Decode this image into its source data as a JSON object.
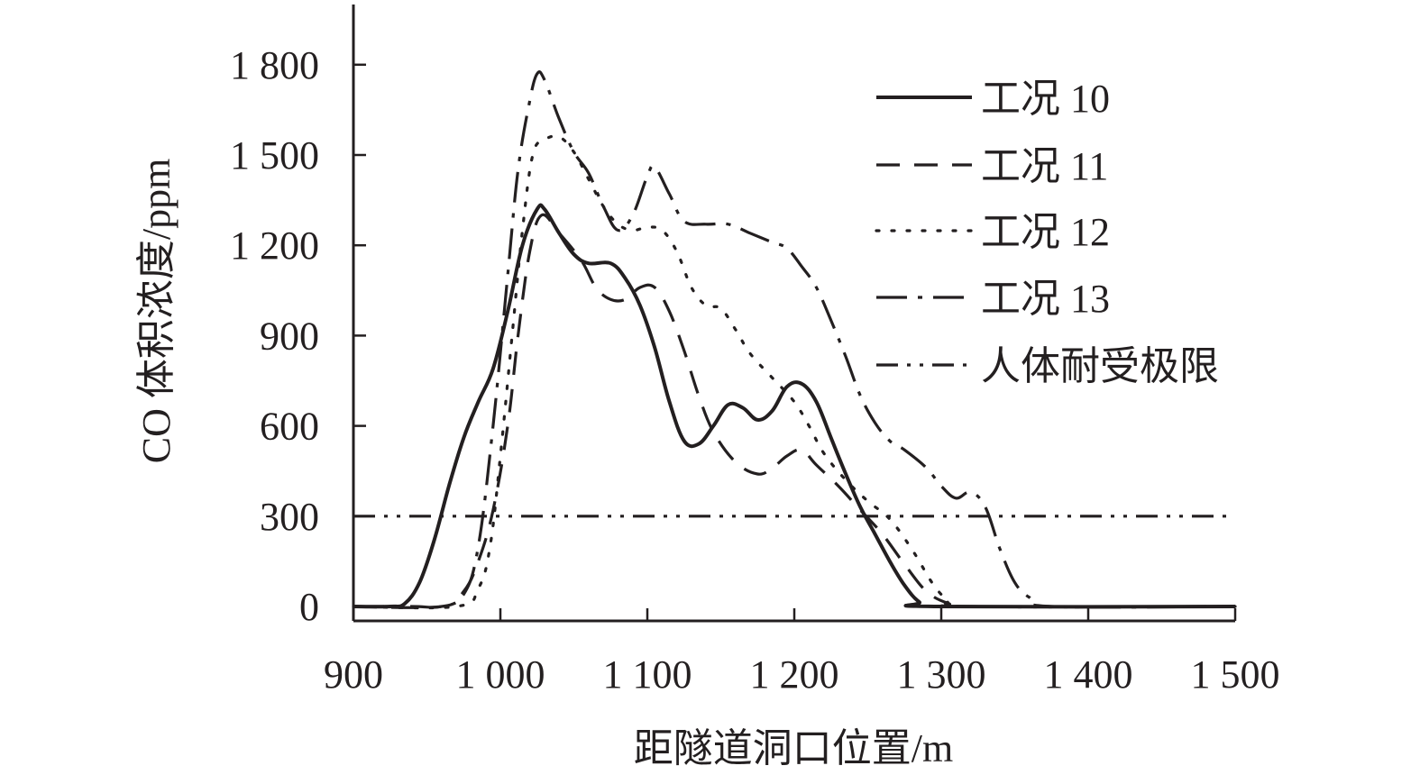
{
  "chart_data": {
    "type": "line",
    "xlabel": "距隧道洞口位置/m",
    "ylabel": "CO 体积浓度/ppm",
    "xlim": [
      900,
      1500
    ],
    "ylim": [
      0,
      2000
    ],
    "x_ticks": [
      900,
      1000,
      1100,
      1200,
      1300,
      1400,
      1500
    ],
    "x_tick_labels": [
      "900",
      "1 000",
      "1 100",
      "1 200",
      "1 300",
      "1 400",
      "1 500"
    ],
    "y_ticks": [
      0,
      300,
      600,
      900,
      1200,
      1500,
      1800
    ],
    "y_tick_labels": [
      "0",
      "300",
      "600",
      "900",
      "1 200",
      "1 500",
      "1 800"
    ],
    "grid": false,
    "legend_position": "top-right",
    "colors": {
      "line": "#231f20"
    },
    "series": [
      {
        "name": "工况 10",
        "style": "solid",
        "points": [
          [
            900,
            0
          ],
          [
            925,
            0
          ],
          [
            935,
            10
          ],
          [
            945,
            80
          ],
          [
            955,
            220
          ],
          [
            965,
            400
          ],
          [
            975,
            560
          ],
          [
            985,
            680
          ],
          [
            995,
            790
          ],
          [
            1005,
            980
          ],
          [
            1015,
            1200
          ],
          [
            1025,
            1320
          ],
          [
            1030,
            1320
          ],
          [
            1040,
            1240
          ],
          [
            1050,
            1170
          ],
          [
            1060,
            1140
          ],
          [
            1075,
            1140
          ],
          [
            1085,
            1090
          ],
          [
            1095,
            1000
          ],
          [
            1105,
            860
          ],
          [
            1115,
            680
          ],
          [
            1125,
            550
          ],
          [
            1135,
            540
          ],
          [
            1145,
            600
          ],
          [
            1155,
            670
          ],
          [
            1165,
            660
          ],
          [
            1175,
            620
          ],
          [
            1185,
            650
          ],
          [
            1195,
            730
          ],
          [
            1205,
            740
          ],
          [
            1215,
            680
          ],
          [
            1225,
            560
          ],
          [
            1235,
            440
          ],
          [
            1245,
            330
          ],
          [
            1255,
            240
          ],
          [
            1265,
            150
          ],
          [
            1275,
            70
          ],
          [
            1285,
            15
          ],
          [
            1295,
            0
          ],
          [
            1500,
            0
          ]
        ]
      },
      {
        "name": "工况 11",
        "style": "dashed",
        "points": [
          [
            900,
            0
          ],
          [
            960,
            0
          ],
          [
            975,
            50
          ],
          [
            985,
            150
          ],
          [
            995,
            320
          ],
          [
            1005,
            600
          ],
          [
            1012,
            900
          ],
          [
            1020,
            1180
          ],
          [
            1028,
            1300
          ],
          [
            1040,
            1240
          ],
          [
            1055,
            1150
          ],
          [
            1065,
            1060
          ],
          [
            1075,
            1020
          ],
          [
            1085,
            1020
          ],
          [
            1095,
            1060
          ],
          [
            1105,
            1060
          ],
          [
            1115,
            980
          ],
          [
            1125,
            850
          ],
          [
            1135,
            700
          ],
          [
            1145,
            580
          ],
          [
            1160,
            480
          ],
          [
            1175,
            440
          ],
          [
            1185,
            460
          ],
          [
            1195,
            500
          ],
          [
            1205,
            520
          ],
          [
            1215,
            470
          ],
          [
            1230,
            400
          ],
          [
            1245,
            320
          ],
          [
            1260,
            240
          ],
          [
            1275,
            140
          ],
          [
            1290,
            50
          ],
          [
            1305,
            10
          ],
          [
            1320,
            0
          ],
          [
            1500,
            0
          ]
        ]
      },
      {
        "name": "工况 12",
        "style": "dotted",
        "points": [
          [
            900,
            0
          ],
          [
            970,
            0
          ],
          [
            985,
            60
          ],
          [
            993,
            200
          ],
          [
            1000,
            500
          ],
          [
            1008,
            900
          ],
          [
            1015,
            1250
          ],
          [
            1022,
            1500
          ],
          [
            1030,
            1550
          ],
          [
            1040,
            1560
          ],
          [
            1050,
            1510
          ],
          [
            1060,
            1420
          ],
          [
            1070,
            1330
          ],
          [
            1080,
            1270
          ],
          [
            1090,
            1250
          ],
          [
            1100,
            1260
          ],
          [
            1110,
            1250
          ],
          [
            1120,
            1180
          ],
          [
            1130,
            1060
          ],
          [
            1140,
            1000
          ],
          [
            1150,
            990
          ],
          [
            1160,
            920
          ],
          [
            1170,
            840
          ],
          [
            1185,
            760
          ],
          [
            1200,
            680
          ],
          [
            1210,
            600
          ],
          [
            1220,
            510
          ],
          [
            1235,
            420
          ],
          [
            1250,
            350
          ],
          [
            1265,
            290
          ],
          [
            1280,
            190
          ],
          [
            1295,
            70
          ],
          [
            1305,
            20
          ],
          [
            1315,
            0
          ],
          [
            1500,
            0
          ]
        ]
      },
      {
        "name": "工况 13",
        "style": "dashdot",
        "points": [
          [
            900,
            0
          ],
          [
            940,
            0
          ],
          [
            960,
            0
          ],
          [
            975,
            40
          ],
          [
            985,
            200
          ],
          [
            995,
            600
          ],
          [
            1005,
            1100
          ],
          [
            1012,
            1450
          ],
          [
            1020,
            1680
          ],
          [
            1025,
            1770
          ],
          [
            1030,
            1750
          ],
          [
            1040,
            1620
          ],
          [
            1050,
            1510
          ],
          [
            1060,
            1440
          ],
          [
            1070,
            1330
          ],
          [
            1080,
            1250
          ],
          [
            1090,
            1300
          ],
          [
            1100,
            1430
          ],
          [
            1105,
            1460
          ],
          [
            1115,
            1370
          ],
          [
            1125,
            1280
          ],
          [
            1140,
            1270
          ],
          [
            1155,
            1270
          ],
          [
            1170,
            1240
          ],
          [
            1185,
            1210
          ],
          [
            1195,
            1190
          ],
          [
            1205,
            1130
          ],
          [
            1215,
            1060
          ],
          [
            1225,
            950
          ],
          [
            1235,
            830
          ],
          [
            1245,
            700
          ],
          [
            1255,
            610
          ],
          [
            1265,
            550
          ],
          [
            1275,
            520
          ],
          [
            1290,
            460
          ],
          [
            1300,
            400
          ],
          [
            1310,
            360
          ],
          [
            1320,
            380
          ],
          [
            1330,
            330
          ],
          [
            1340,
            190
          ],
          [
            1350,
            80
          ],
          [
            1360,
            30
          ],
          [
            1375,
            0
          ],
          [
            1500,
            0
          ]
        ]
      },
      {
        "name": "人体耐受极限",
        "style": "dashdotdot",
        "points": [
          [
            900,
            300
          ],
          [
            1500,
            300
          ]
        ]
      }
    ]
  }
}
